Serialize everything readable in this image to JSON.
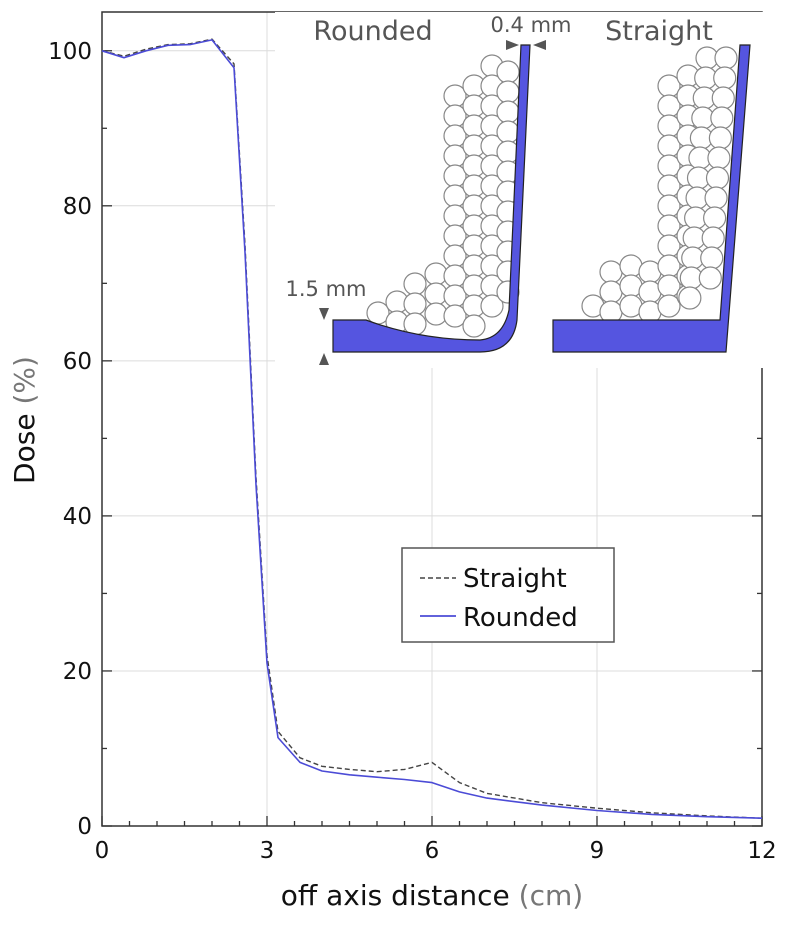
{
  "chart_data": {
    "type": "line",
    "xlabel": "off axis distance",
    "xunit": "(cm)",
    "ylabel": "Dose",
    "yunit": "(%)",
    "xlim": [
      0,
      12
    ],
    "ylim": [
      0,
      105
    ],
    "xticks": [
      0,
      3,
      6,
      9,
      12
    ],
    "yticks": [
      0,
      20,
      40,
      60,
      80,
      100
    ],
    "grid": true,
    "legend_position": "center-right",
    "series": [
      {
        "name": "Straight",
        "color": "#444444",
        "style": "dashed",
        "x": [
          0,
          0.4,
          0.8,
          1.2,
          1.6,
          2.0,
          2.4,
          2.6,
          2.8,
          3.0,
          3.2,
          3.6,
          4.0,
          4.5,
          5.0,
          5.5,
          6.0,
          6.5,
          7.0,
          8.0,
          9.0,
          10.0,
          11.0,
          12.0
        ],
        "y": [
          100,
          99.3,
          100.2,
          100.8,
          100.9,
          101.5,
          98.3,
          75,
          45,
          22,
          12.2,
          8.8,
          7.7,
          7.3,
          7.0,
          7.3,
          8.2,
          5.6,
          4.2,
          3.0,
          2.3,
          1.7,
          1.3,
          1.0
        ]
      },
      {
        "name": "Rounded",
        "color": "#4b4bd6",
        "style": "solid",
        "x": [
          0,
          0.4,
          0.8,
          1.2,
          1.6,
          2.0,
          2.4,
          2.6,
          2.8,
          3.0,
          3.2,
          3.6,
          4.0,
          4.5,
          5.0,
          5.5,
          6.0,
          6.5,
          7.0,
          8.0,
          9.0,
          10.0,
          11.0,
          12.0
        ],
        "y": [
          100,
          99.1,
          100.0,
          100.7,
          100.8,
          101.4,
          97.8,
          74,
          44,
          21,
          11.4,
          8.2,
          7.1,
          6.6,
          6.3,
          6.0,
          5.6,
          4.4,
          3.6,
          2.7,
          2.0,
          1.5,
          1.2,
          1.0
        ]
      }
    ]
  },
  "inset": {
    "rounded_label": "Rounded",
    "straight_label": "Straight",
    "thickness_label": "0.4 mm",
    "height_label": "1.5 mm",
    "fill_color": "#5555e0"
  }
}
